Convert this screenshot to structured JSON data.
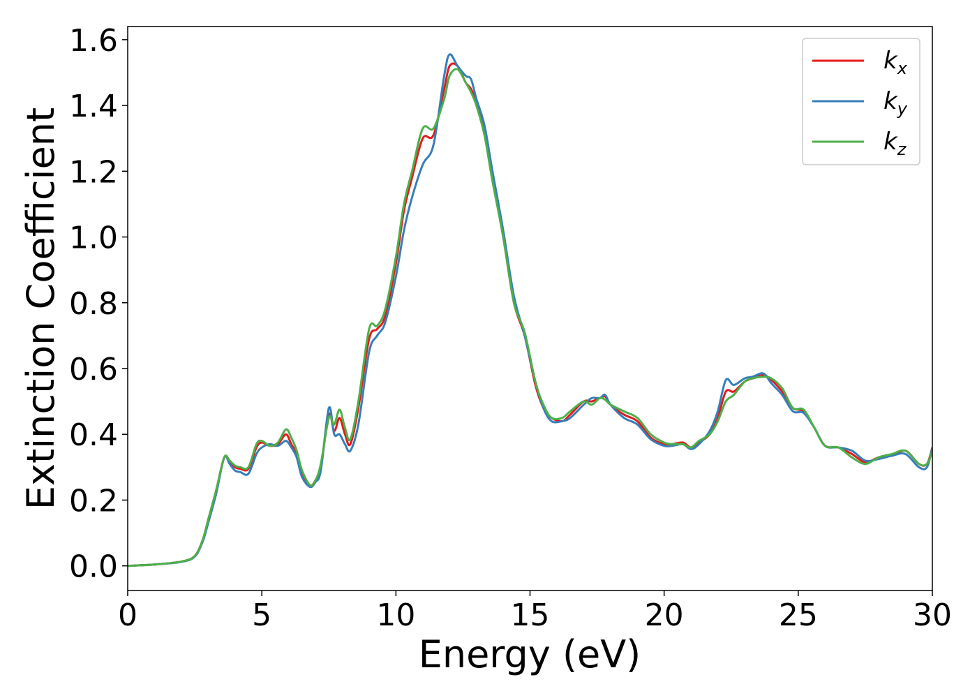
{
  "chart_data": {
    "type": "line",
    "title": "",
    "xlabel": "Energy (eV)",
    "ylabel": "Extinction Coefficient",
    "xlim": [
      0,
      30
    ],
    "ylim": [
      -0.075,
      1.64
    ],
    "xticks": [
      0,
      5,
      10,
      15,
      20,
      25,
      30
    ],
    "yticks": [
      0.0,
      0.2,
      0.4,
      0.6,
      0.8,
      1.0,
      1.2,
      1.4,
      1.6
    ],
    "grid": false,
    "legend_position": "top-right",
    "series": [
      {
        "name": "k_x",
        "label_main": "k",
        "label_sub": "x",
        "color": "#e41a1c",
        "x": [
          0,
          1,
          2,
          2.5,
          2.8,
          3.0,
          3.3,
          3.6,
          3.8,
          4.0,
          4.2,
          4.5,
          4.8,
          5.0,
          5.3,
          5.6,
          5.9,
          6.1,
          6.3,
          6.5,
          6.8,
          7.0,
          7.2,
          7.5,
          7.7,
          7.9,
          8.1,
          8.3,
          8.6,
          9.0,
          9.3,
          9.6,
          10.0,
          10.3,
          10.6,
          11.0,
          11.4,
          11.8,
          12.0,
          12.3,
          12.6,
          12.8,
          13.0,
          13.3,
          13.6,
          14.0,
          14.4,
          14.8,
          15.2,
          15.5,
          15.8,
          16.2,
          16.5,
          17.0,
          17.3,
          17.6,
          17.8,
          18.0,
          18.5,
          19.0,
          19.5,
          20.0,
          20.3,
          20.7,
          21.0,
          21.3,
          21.7,
          22.0,
          22.3,
          22.6,
          23.0,
          23.3,
          23.7,
          24.0,
          24.4,
          24.8,
          25.2,
          25.6,
          26.0,
          26.5,
          27.0,
          27.5,
          28.0,
          28.5,
          29.0,
          29.5,
          29.8,
          30.0
        ],
        "y": [
          0.0,
          0.004,
          0.013,
          0.03,
          0.08,
          0.14,
          0.23,
          0.33,
          0.315,
          0.3,
          0.295,
          0.295,
          0.36,
          0.375,
          0.365,
          0.37,
          0.4,
          0.37,
          0.34,
          0.28,
          0.245,
          0.26,
          0.3,
          0.46,
          0.41,
          0.45,
          0.4,
          0.37,
          0.48,
          0.69,
          0.72,
          0.76,
          0.92,
          1.08,
          1.18,
          1.3,
          1.31,
          1.45,
          1.52,
          1.52,
          1.47,
          1.45,
          1.41,
          1.32,
          1.18,
          1.0,
          0.8,
          0.7,
          0.55,
          0.48,
          0.45,
          0.44,
          0.46,
          0.5,
          0.5,
          0.51,
          0.515,
          0.49,
          0.46,
          0.44,
          0.39,
          0.37,
          0.37,
          0.375,
          0.36,
          0.375,
          0.4,
          0.45,
          0.53,
          0.53,
          0.56,
          0.57,
          0.58,
          0.565,
          0.53,
          0.48,
          0.47,
          0.42,
          0.365,
          0.36,
          0.34,
          0.315,
          0.33,
          0.335,
          0.35,
          0.31,
          0.31,
          0.36
        ]
      },
      {
        "name": "k_y",
        "label_main": "k",
        "label_sub": "y",
        "color": "#377eb8",
        "x": [
          0,
          1,
          2,
          2.5,
          2.8,
          3.0,
          3.3,
          3.6,
          3.8,
          4.0,
          4.2,
          4.5,
          4.8,
          5.0,
          5.3,
          5.6,
          5.9,
          6.1,
          6.3,
          6.5,
          6.8,
          7.0,
          7.2,
          7.5,
          7.7,
          7.9,
          8.1,
          8.3,
          8.6,
          9.0,
          9.3,
          9.6,
          10.0,
          10.3,
          10.6,
          11.0,
          11.4,
          11.8,
          12.0,
          12.3,
          12.6,
          12.8,
          13.0,
          13.3,
          13.6,
          14.0,
          14.4,
          14.8,
          15.2,
          15.5,
          15.8,
          16.2,
          16.5,
          17.0,
          17.3,
          17.6,
          17.8,
          18.0,
          18.5,
          19.0,
          19.5,
          20.0,
          20.3,
          20.7,
          21.0,
          21.3,
          21.7,
          22.0,
          22.3,
          22.6,
          23.0,
          23.3,
          23.7,
          24.0,
          24.4,
          24.8,
          25.2,
          25.6,
          26.0,
          26.5,
          27.0,
          27.5,
          28.0,
          28.5,
          29.0,
          29.5,
          29.8,
          30.0
        ],
        "y": [
          0.0,
          0.004,
          0.012,
          0.028,
          0.075,
          0.13,
          0.22,
          0.33,
          0.31,
          0.29,
          0.285,
          0.28,
          0.34,
          0.36,
          0.37,
          0.365,
          0.38,
          0.36,
          0.33,
          0.27,
          0.24,
          0.255,
          0.29,
          0.48,
          0.4,
          0.4,
          0.37,
          0.35,
          0.43,
          0.65,
          0.7,
          0.74,
          0.88,
          1.02,
          1.12,
          1.22,
          1.28,
          1.49,
          1.555,
          1.52,
          1.49,
          1.48,
          1.42,
          1.34,
          1.2,
          1.02,
          0.82,
          0.7,
          0.56,
          0.48,
          0.44,
          0.44,
          0.45,
          0.49,
          0.51,
          0.51,
          0.52,
          0.49,
          0.45,
          0.43,
          0.385,
          0.365,
          0.365,
          0.37,
          0.355,
          0.37,
          0.41,
          0.47,
          0.565,
          0.55,
          0.57,
          0.575,
          0.585,
          0.555,
          0.52,
          0.47,
          0.465,
          0.42,
          0.365,
          0.36,
          0.35,
          0.32,
          0.325,
          0.335,
          0.34,
          0.3,
          0.3,
          0.36
        ]
      },
      {
        "name": "k_z",
        "label_main": "k",
        "label_sub": "z",
        "color": "#4daf4a",
        "x": [
          0,
          1,
          2,
          2.5,
          2.8,
          3.0,
          3.3,
          3.6,
          3.8,
          4.0,
          4.2,
          4.5,
          4.8,
          5.0,
          5.3,
          5.6,
          5.9,
          6.1,
          6.3,
          6.5,
          6.8,
          7.0,
          7.2,
          7.5,
          7.7,
          7.9,
          8.1,
          8.3,
          8.6,
          9.0,
          9.3,
          9.6,
          10.0,
          10.3,
          10.6,
          11.0,
          11.4,
          11.8,
          12.0,
          12.3,
          12.6,
          12.8,
          13.0,
          13.3,
          13.6,
          14.0,
          14.4,
          14.8,
          15.2,
          15.5,
          15.8,
          16.2,
          16.5,
          17.0,
          17.3,
          17.6,
          17.8,
          18.0,
          18.5,
          19.0,
          19.5,
          20.0,
          20.3,
          20.7,
          21.0,
          21.3,
          21.7,
          22.0,
          22.3,
          22.6,
          23.0,
          23.3,
          23.7,
          24.0,
          24.4,
          24.8,
          25.2,
          25.6,
          26.0,
          26.5,
          27.0,
          27.5,
          28.0,
          28.5,
          29.0,
          29.5,
          29.8,
          30.0
        ],
        "y": [
          0.0,
          0.004,
          0.013,
          0.03,
          0.08,
          0.14,
          0.23,
          0.33,
          0.32,
          0.305,
          0.3,
          0.3,
          0.37,
          0.38,
          0.365,
          0.375,
          0.415,
          0.39,
          0.35,
          0.29,
          0.245,
          0.26,
          0.31,
          0.45,
          0.43,
          0.475,
          0.42,
          0.385,
          0.5,
          0.72,
          0.73,
          0.78,
          0.94,
          1.1,
          1.2,
          1.33,
          1.33,
          1.42,
          1.49,
          1.51,
          1.47,
          1.44,
          1.4,
          1.31,
          1.17,
          1.0,
          0.8,
          0.71,
          0.56,
          0.49,
          0.45,
          0.45,
          0.47,
          0.5,
          0.49,
          0.51,
          0.505,
          0.49,
          0.47,
          0.45,
          0.4,
          0.375,
          0.37,
          0.37,
          0.36,
          0.38,
          0.4,
          0.44,
          0.5,
          0.52,
          0.56,
          0.57,
          0.575,
          0.57,
          0.54,
          0.48,
          0.475,
          0.42,
          0.365,
          0.36,
          0.33,
          0.31,
          0.33,
          0.34,
          0.35,
          0.31,
          0.31,
          0.35
        ]
      }
    ]
  }
}
